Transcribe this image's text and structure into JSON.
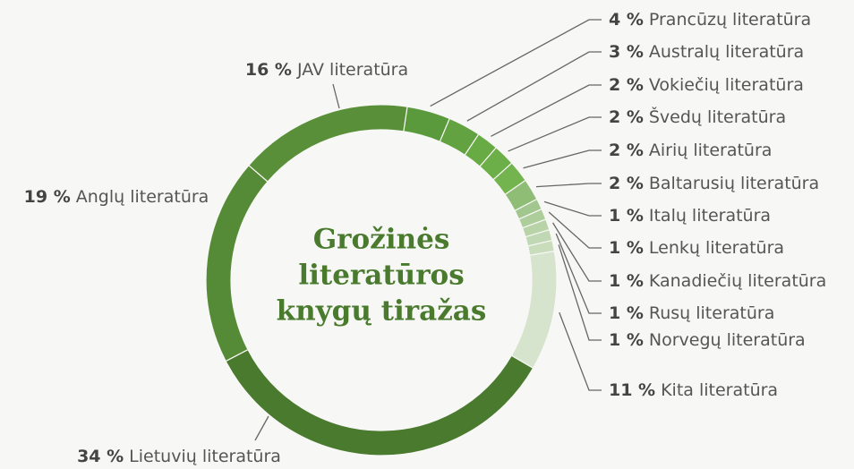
{
  "chart_data": {
    "type": "donut",
    "title": [
      "Grožinės",
      "literatūros",
      "knygų tiražas"
    ],
    "categories": [
      "Prancūzų literatūra",
      "Australų literatūra",
      "Vokiečių literatūra",
      "Švedų literatūra",
      "Airių literatūra",
      "Baltarusių literatūra",
      "Italų literatūra",
      "Lenkų literatūra",
      "Kanadiečių literatūra",
      "Rusų literatūra",
      "Norvegų literatūra",
      "Kita literatūra",
      "Lietuvių literatūra",
      "Anglų literatūra",
      "JAV literatūra"
    ],
    "values": [
      4,
      3,
      2,
      2,
      2,
      2,
      1,
      1,
      1,
      1,
      1,
      11,
      34,
      19,
      16
    ],
    "value_labels": [
      "4 %",
      "3 %",
      "2 %",
      "2 %",
      "2 %",
      "2 %",
      "1 %",
      "1 %",
      "1 %",
      "1 %",
      "1 %",
      "11 %",
      "34 %",
      "19 %",
      "16 %"
    ],
    "colors": [
      "#5b9a3c",
      "#62a240",
      "#68aa44",
      "#6cae47",
      "#74b44f",
      "#8fbd76",
      "#a2c78e",
      "#adcd9b",
      "#b7d3a7",
      "#c0d8b3",
      "#c9ddbd",
      "#d6e3cd",
      "#4a7a2e",
      "#558a36",
      "#5a8f39"
    ]
  }
}
